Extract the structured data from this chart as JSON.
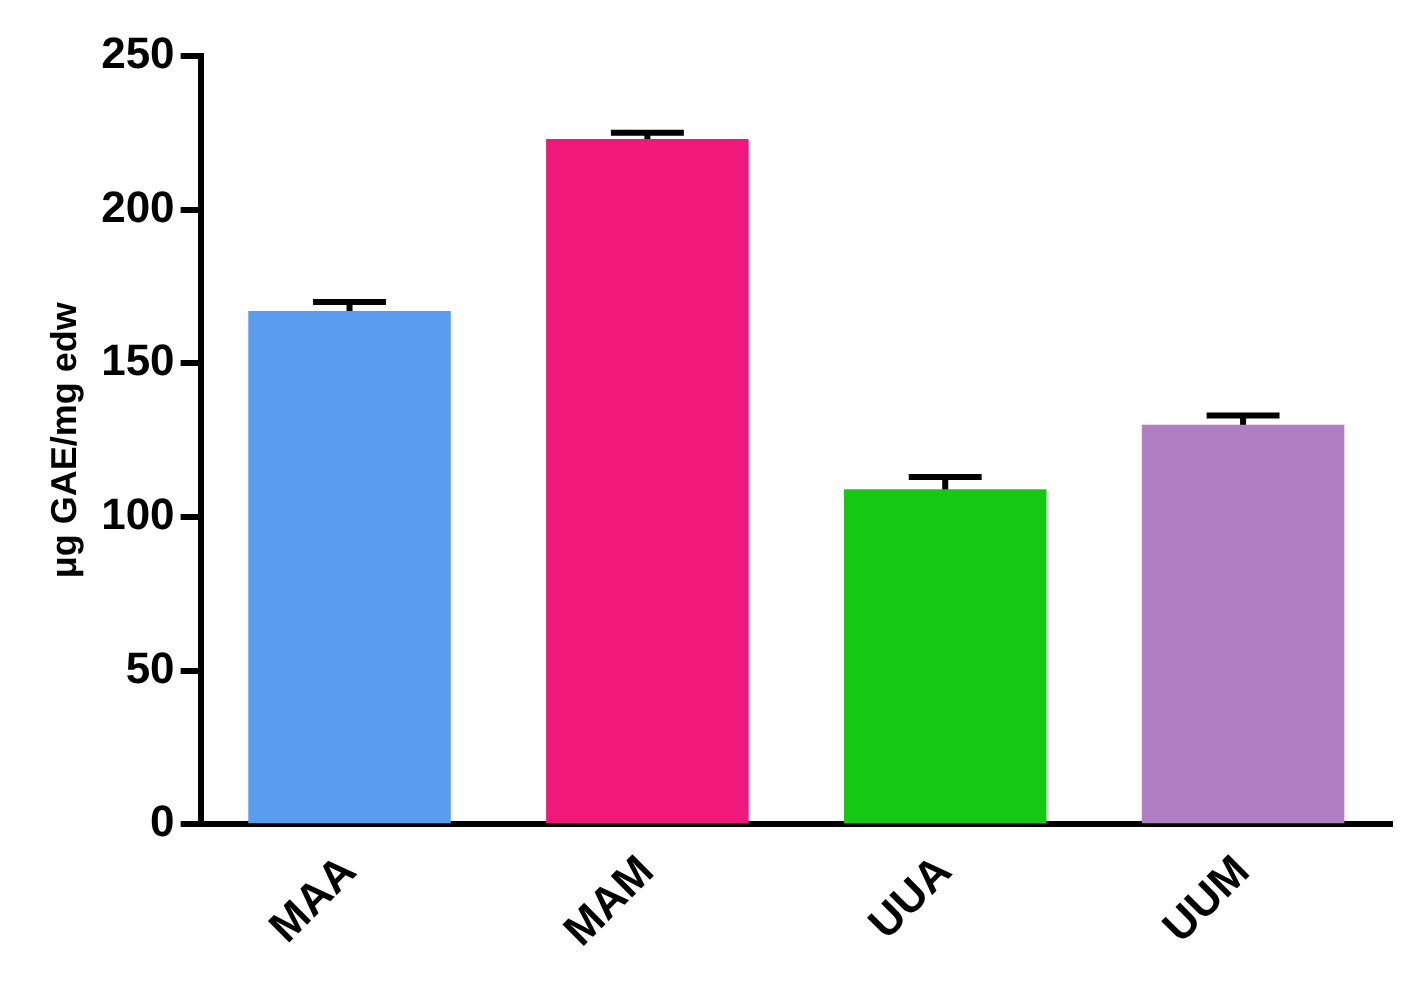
{
  "chart_data": {
    "type": "bar",
    "ylabel": "μg GAE/mg edw",
    "categories": [
      "MAA",
      "MAM",
      "UUA",
      "UUM"
    ],
    "values": [
      167,
      223,
      109,
      130
    ],
    "colors": [
      "#5a9cf0",
      "#f0197a",
      "#14c814",
      "#b07ec2"
    ],
    "errors": [
      3,
      2,
      4,
      3
    ],
    "ylim": [
      0,
      250
    ],
    "yticks": [
      0,
      50,
      100,
      150,
      200,
      250
    ],
    "grid": false
  }
}
